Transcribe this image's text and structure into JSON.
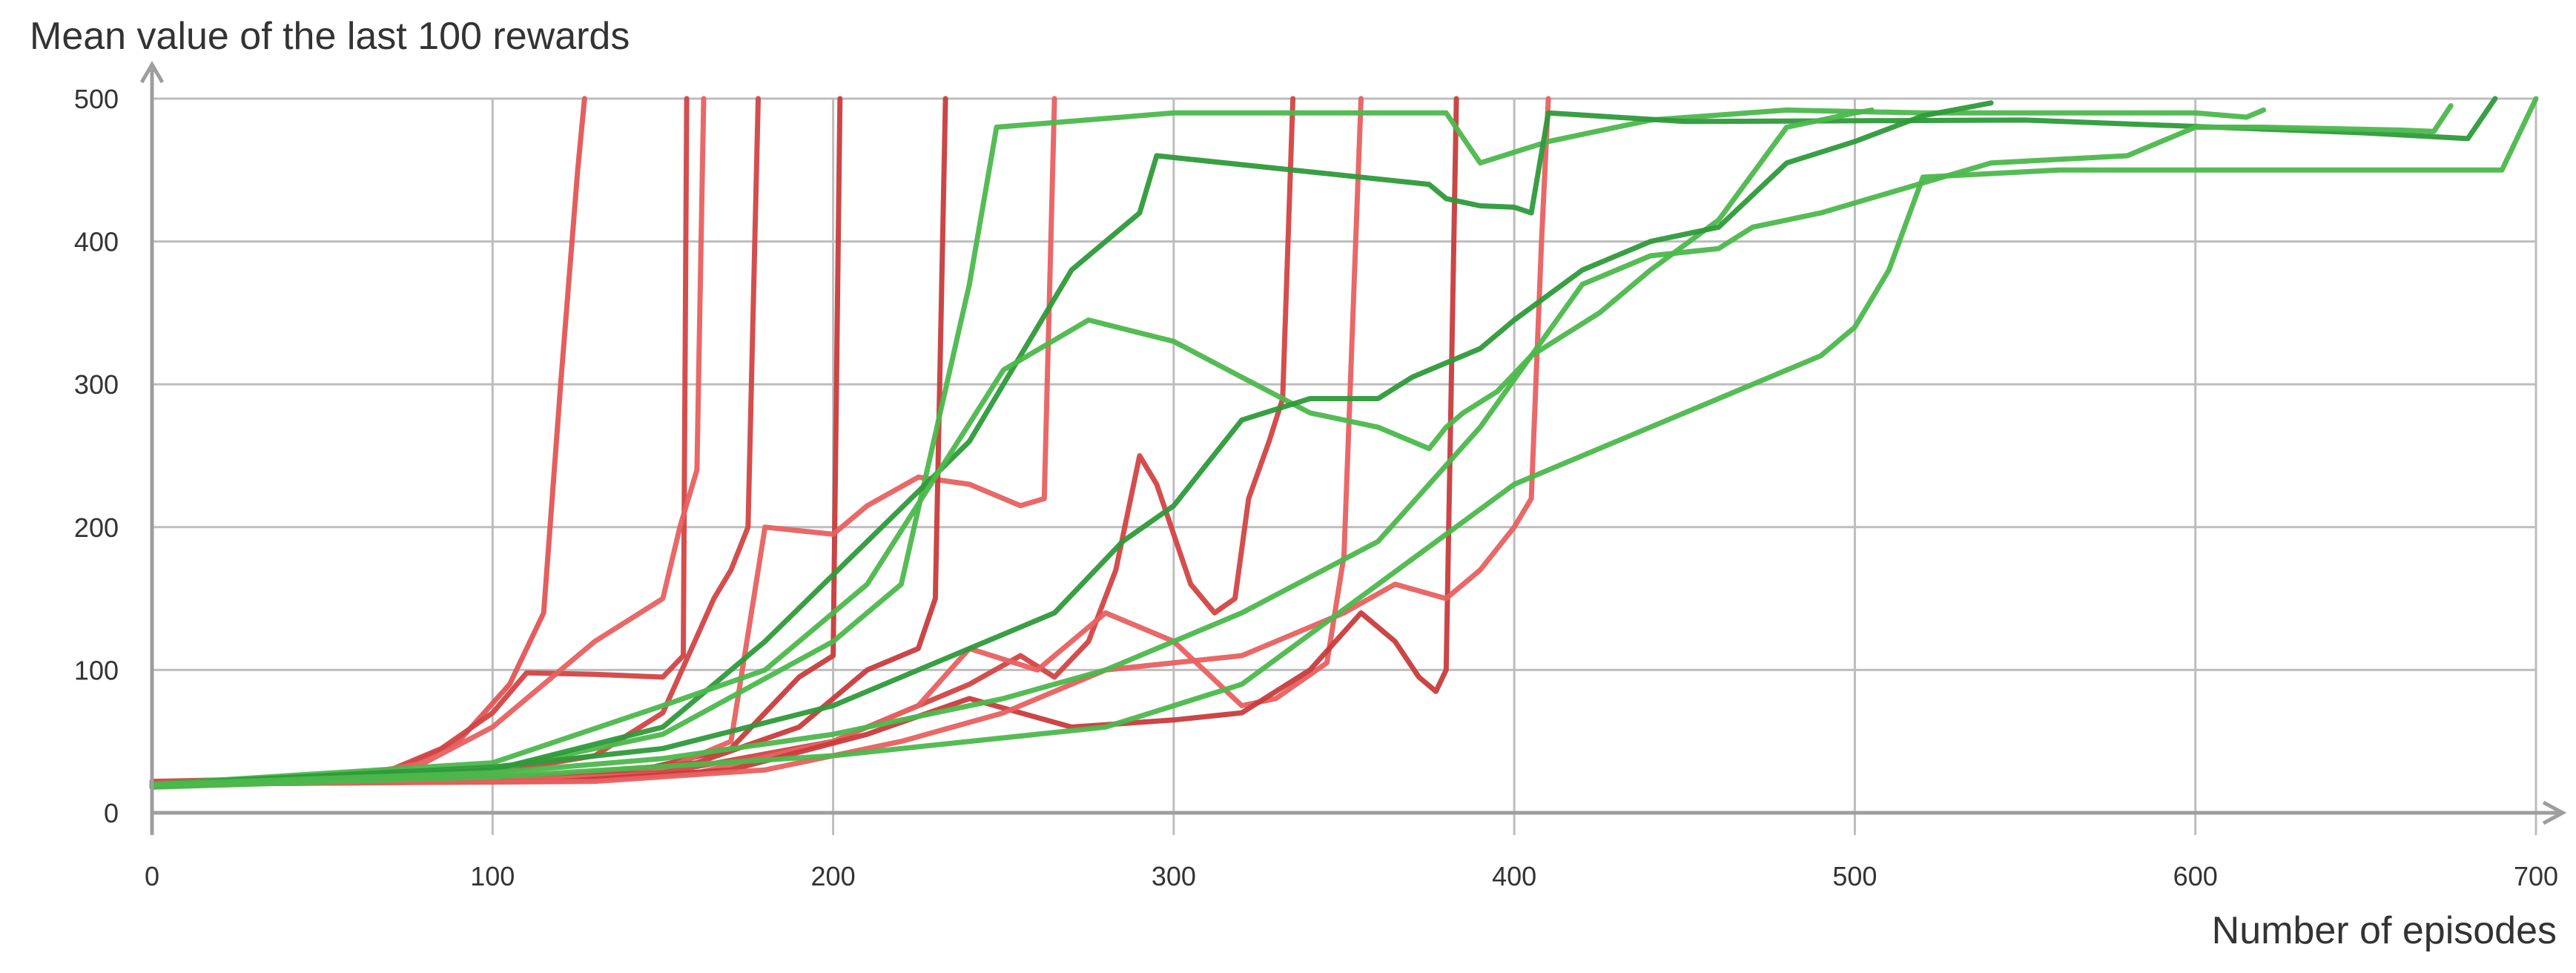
{
  "chart_data": {
    "type": "line",
    "title": "",
    "ylabel": "Mean value of the last 100 rewards",
    "xlabel": "Number of episodes",
    "xlim": [
      0,
      700
    ],
    "ylim": [
      0,
      500
    ],
    "xticks": [
      0,
      100,
      200,
      300,
      400,
      500,
      600,
      700
    ],
    "yticks": [
      0,
      100,
      200,
      300,
      400,
      500
    ],
    "xtick_labels": [
      "0",
      "100",
      "200",
      "300",
      "400",
      "500",
      "600",
      "700"
    ],
    "ytick_labels": [
      "0",
      "100",
      "200",
      "300",
      "400",
      "500"
    ],
    "grid": true,
    "legend": "none",
    "colors": {
      "red_dark": "#c83c3c",
      "red_light": "#e85a5a",
      "green_dark": "#2e9a3a",
      "green_light": "#4cb84c",
      "grid": "#bdbdbd",
      "axis": "#9e9e9e"
    },
    "series": [
      {
        "color": "#e35555",
        "x": [
          0,
          40,
          70,
          90,
          105,
          115,
          120,
          125,
          127
        ],
        "y": [
          20,
          22,
          28,
          50,
          90,
          140,
          300,
          450,
          500
        ]
      },
      {
        "color": "#d24545",
        "x": [
          0,
          40,
          70,
          85,
          100,
          110,
          130,
          150,
          156,
          157
        ],
        "y": [
          22,
          24,
          30,
          45,
          70,
          98,
          97,
          95,
          110,
          500
        ]
      },
      {
        "color": "#e86060",
        "x": [
          0,
          50,
          80,
          100,
          110,
          130,
          150,
          155,
          160,
          162
        ],
        "y": [
          18,
          22,
          35,
          60,
          80,
          120,
          150,
          200,
          240,
          500
        ]
      },
      {
        "color": "#d24545",
        "x": [
          0,
          60,
          100,
          130,
          150,
          165,
          170,
          175,
          178
        ],
        "y": [
          20,
          22,
          28,
          40,
          70,
          150,
          170,
          200,
          500
        ]
      },
      {
        "color": "#c83c3c",
        "x": [
          0,
          60,
          100,
          140,
          170,
          190,
          200,
          202
        ],
        "y": [
          20,
          22,
          25,
          28,
          45,
          95,
          110,
          500
        ]
      },
      {
        "color": "#e86060",
        "x": [
          0,
          60,
          100,
          150,
          170,
          180,
          200,
          210,
          225,
          240,
          255,
          262,
          265
        ],
        "y": [
          20,
          21,
          24,
          30,
          50,
          200,
          195,
          215,
          235,
          230,
          215,
          220,
          500
        ]
      },
      {
        "color": "#c83c3c",
        "x": [
          0,
          80,
          120,
          160,
          190,
          210,
          225,
          230,
          233
        ],
        "y": [
          20,
          22,
          26,
          35,
          60,
          100,
          115,
          150,
          500
        ]
      },
      {
        "color": "#d24545",
        "x": [
          0,
          100,
          150,
          200,
          225,
          240,
          255,
          265,
          275,
          283,
          290,
          295,
          305,
          312,
          318,
          322,
          328,
          332,
          335
        ],
        "y": [
          20,
          22,
          28,
          50,
          75,
          90,
          110,
          95,
          120,
          170,
          250,
          230,
          160,
          140,
          150,
          220,
          260,
          290,
          500
        ]
      },
      {
        "color": "#e86060",
        "x": [
          0,
          100,
          160,
          200,
          225,
          240,
          260,
          280,
          300,
          320,
          330,
          345,
          350,
          355
        ],
        "y": [
          20,
          22,
          28,
          50,
          75,
          115,
          100,
          140,
          120,
          75,
          80,
          105,
          180,
          500
        ]
      },
      {
        "color": "#c83c3c",
        "x": [
          0,
          120,
          170,
          210,
          240,
          270,
          300,
          320,
          340,
          355,
          365,
          372,
          377,
          380,
          383
        ],
        "y": [
          20,
          22,
          30,
          55,
          80,
          60,
          65,
          70,
          100,
          140,
          120,
          95,
          85,
          100,
          500
        ]
      },
      {
        "color": "#e86060",
        "x": [
          0,
          130,
          180,
          220,
          250,
          280,
          320,
          350,
          365,
          380,
          390,
          400,
          405,
          408,
          410
        ],
        "y": [
          20,
          22,
          30,
          50,
          70,
          100,
          110,
          140,
          160,
          150,
          170,
          200,
          220,
          400,
          500
        ]
      },
      {
        "color": "#4cb84c",
        "x": [
          0,
          100,
          150,
          200,
          220,
          240,
          248,
          300,
          380,
          390,
          410,
          440,
          480,
          520,
          560,
          600,
          615,
          620
        ],
        "y": [
          18,
          30,
          55,
          120,
          160,
          370,
          480,
          490,
          490,
          455,
          470,
          485,
          492,
          490,
          490,
          490,
          487,
          492
        ]
      },
      {
        "color": "#2e9a3a",
        "x": [
          0,
          100,
          150,
          180,
          210,
          240,
          270,
          290,
          295,
          375,
          380,
          390,
          400,
          405,
          410,
          450,
          550,
          650,
          680,
          688
        ],
        "y": [
          18,
          30,
          60,
          120,
          190,
          260,
          380,
          420,
          460,
          440,
          430,
          425,
          424,
          420,
          490,
          484,
          485,
          476,
          472,
          500
        ]
      },
      {
        "color": "#4cb84c",
        "x": [
          0,
          100,
          150,
          180,
          210,
          250,
          275,
          300,
          320,
          340,
          360,
          375,
          380,
          385,
          395,
          405,
          415,
          425,
          440,
          460,
          480,
          500,
          505
        ],
        "y": [
          20,
          35,
          75,
          100,
          160,
          310,
          345,
          330,
          305,
          280,
          270,
          255,
          270,
          280,
          295,
          320,
          335,
          350,
          380,
          415,
          480,
          490,
          492
        ]
      },
      {
        "color": "#2e9a3a",
        "x": [
          0,
          100,
          150,
          200,
          240,
          265,
          285,
          300,
          320,
          340,
          360,
          370,
          390,
          400,
          420,
          440,
          460,
          480,
          500,
          520,
          540
        ],
        "y": [
          20,
          32,
          45,
          75,
          115,
          140,
          190,
          215,
          275,
          290,
          290,
          305,
          325,
          345,
          380,
          400,
          410,
          455,
          470,
          488,
          497
        ]
      },
      {
        "color": "#4cb84c",
        "x": [
          0,
          100,
          150,
          200,
          250,
          280,
          320,
          360,
          390,
          420,
          440,
          460,
          470,
          490,
          540,
          580,
          600,
          620,
          660,
          670,
          675
        ],
        "y": [
          20,
          28,
          38,
          55,
          80,
          100,
          140,
          190,
          270,
          370,
          390,
          395,
          410,
          420,
          455,
          460,
          480,
          480,
          478,
          477,
          495
        ]
      },
      {
        "color": "#4cb84c",
        "x": [
          0,
          100,
          200,
          280,
          320,
          360,
          400,
          430,
          460,
          490,
          500,
          510,
          520,
          560,
          600,
          650,
          690,
          700
        ],
        "y": [
          18,
          25,
          40,
          60,
          90,
          160,
          230,
          260,
          290,
          320,
          340,
          380,
          445,
          450,
          450,
          450,
          450,
          500
        ]
      }
    ]
  }
}
